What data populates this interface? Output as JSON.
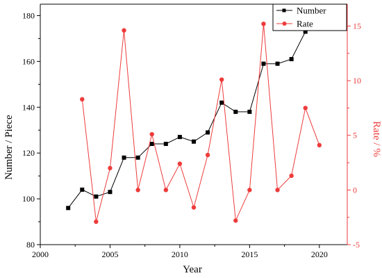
{
  "chart_data": {
    "type": "line",
    "title": "",
    "xlabel": "Year",
    "ylabel_left": "Number / Piece",
    "ylabel_right": "Rate / %",
    "xlim": [
      2000,
      2022
    ],
    "ylim_left": [
      80,
      185
    ],
    "ylim_right": [
      -5,
      17
    ],
    "x_ticks": [
      2000,
      2005,
      2010,
      2015,
      2020
    ],
    "y_ticks_left": [
      80,
      100,
      120,
      140,
      160,
      180
    ],
    "y_ticks_right": [
      -5,
      0,
      5,
      10,
      15
    ],
    "grid": false,
    "legend_position": "top-right",
    "series": [
      {
        "name": "Number",
        "axis": "left",
        "color": "#000000",
        "marker": "square",
        "x": [
          2002,
          2003,
          2004,
          2005,
          2006,
          2007,
          2008,
          2009,
          2010,
          2011,
          2012,
          2013,
          2014,
          2015,
          2016,
          2017,
          2018,
          2019,
          2020
        ],
        "y": [
          96,
          104,
          101,
          103,
          118,
          118,
          124,
          124,
          127,
          125,
          129,
          142,
          138,
          138,
          159,
          159,
          161,
          173,
          180
        ]
      },
      {
        "name": "Rate",
        "axis": "right",
        "color": "#ee3b3b",
        "marker": "circle",
        "x": [
          2003,
          2004,
          2005,
          2006,
          2007,
          2008,
          2009,
          2010,
          2011,
          2012,
          2013,
          2014,
          2015,
          2016,
          2017,
          2018,
          2019,
          2020
        ],
        "y": [
          8.3,
          -2.9,
          2.0,
          14.6,
          0.0,
          5.1,
          0.0,
          2.4,
          -1.6,
          3.2,
          10.1,
          -2.8,
          0.0,
          15.2,
          0.0,
          1.3,
          7.5,
          4.1
        ]
      }
    ]
  }
}
